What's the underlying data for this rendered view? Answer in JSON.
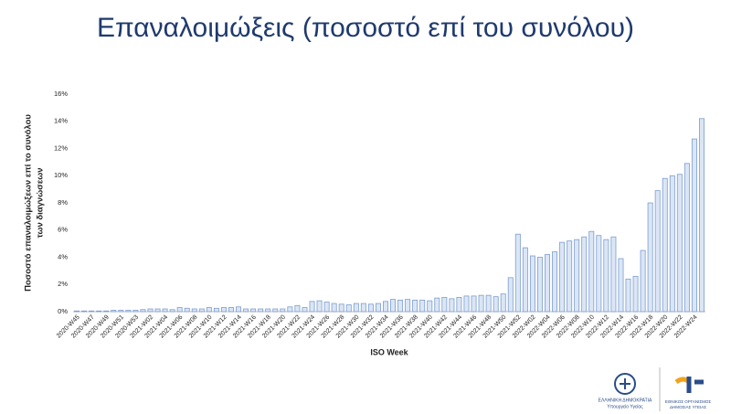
{
  "chart_data": {
    "type": "bar",
    "title": "Επαναλοιμώξεις (ποσοστό επί του συνόλου)",
    "y_label": [
      "Ποσοστό επαναλοιμώξεων επί το συνόλου",
      "των διαγνώσεων"
    ],
    "x_label": "ISO Week",
    "color": "#dbe6f5",
    "edge_color": "#7c9dd0",
    "categories": [
      "2020-W45",
      null,
      "2020-W47",
      null,
      "2020-W49",
      null,
      "2020-W51",
      null,
      "2020-W53",
      null,
      "2021-W02",
      null,
      "2021-W04",
      null,
      "2021-W06",
      null,
      "2021-W08",
      null,
      "2021-W10",
      null,
      "2021-W12",
      null,
      "2021-W14",
      null,
      "2021-W16",
      null,
      "2021-W18",
      null,
      "2021-W20",
      null,
      "2021-W22",
      null,
      "2021-W24",
      null,
      "2021-W26",
      null,
      "2021-W28",
      null,
      "2021-W30",
      null,
      "2021-W32",
      null,
      "2021-W34",
      null,
      "2021-W36",
      null,
      "2021-W38",
      null,
      "2021-W40",
      null,
      "2021-W42",
      null,
      "2021-W44",
      null,
      "2021-W46",
      null,
      "2021-W48",
      null,
      "2021-W50",
      null,
      "2021-W52",
      null,
      "2022-W02",
      null,
      "2022-W04",
      null,
      "2022-W06",
      null,
      "2022-W08",
      null,
      "2022-W10",
      null,
      "2022-W12",
      null,
      "2022-W14",
      null,
      "2022-W16",
      null,
      "2022-W18",
      null,
      "2022-W20",
      null,
      "2022-W22",
      null,
      "2022-W24",
      null
    ],
    "values": [
      0.05,
      0.05,
      0.05,
      0.05,
      0.05,
      0.1,
      0.1,
      0.1,
      0.1,
      0.15,
      0.2,
      0.2,
      0.2,
      0.15,
      0.3,
      0.25,
      0.2,
      0.2,
      0.3,
      0.25,
      0.3,
      0.3,
      0.35,
      0.2,
      0.2,
      0.2,
      0.2,
      0.2,
      0.2,
      0.35,
      0.45,
      0.3,
      0.75,
      0.8,
      0.7,
      0.6,
      0.55,
      0.5,
      0.6,
      0.6,
      0.55,
      0.6,
      0.75,
      0.9,
      0.85,
      0.9,
      0.85,
      0.85,
      0.8,
      1.0,
      1.05,
      0.95,
      1.05,
      1.15,
      1.15,
      1.2,
      1.2,
      1.1,
      1.3,
      2.5,
      5.7,
      4.7,
      4.1,
      4.0,
      4.2,
      4.4,
      5.1,
      5.2,
      5.3,
      5.5,
      5.9,
      5.6,
      5.3,
      5.5,
      3.9,
      2.4,
      2.6,
      4.5,
      8.0,
      8.9,
      9.8,
      10.0,
      10.1,
      10.9,
      12.7,
      14.2
    ],
    "ylim": [
      0,
      16
    ],
    "yticks": [
      {
        "value": 0,
        "label": "0%"
      },
      {
        "value": 2,
        "label": "2%"
      },
      {
        "value": 4,
        "label": "4%"
      },
      {
        "value": 6,
        "label": "6%"
      },
      {
        "value": 8,
        "label": "8%"
      },
      {
        "value": 10,
        "label": "10%"
      },
      {
        "value": 12,
        "label": "12%"
      },
      {
        "value": 14,
        "label": "14%"
      },
      {
        "value": 16,
        "label": "16%"
      }
    ],
    "grid": false
  },
  "logos": {
    "ministry": [
      "ΕΛΛΗΝΙΚΗ ΔΗΜΟΚΡΑΤΙΑ",
      "Υπουργείο Υγείας"
    ],
    "eody": [
      "ΕΘΝΙΚΟΣ ΟΡΓΑΝΙΣΜΟΣ",
      "ΔΗΜΟΣΙΑΣ ΥΓΕΙΑΣ"
    ]
  }
}
